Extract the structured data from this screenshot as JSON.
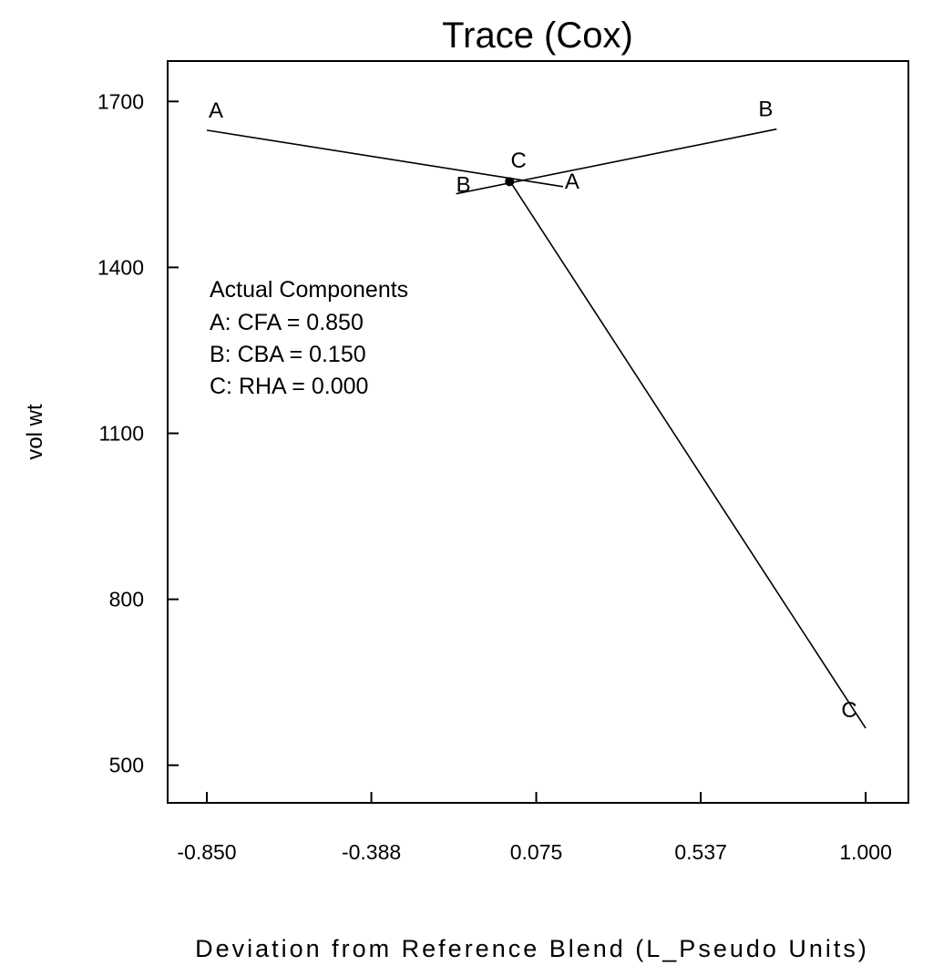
{
  "chart_data": {
    "type": "line",
    "title": "Trace (Cox)",
    "xlabel": "Deviation from Reference Blend (L_Pseudo Units)",
    "ylabel": "vol wt",
    "xlim": [
      -0.96,
      1.12
    ],
    "ylim": [
      432,
      1773
    ],
    "x_ticks": [
      {
        "value": -0.85,
        "label": "-0.850"
      },
      {
        "value": -0.388,
        "label": "-0.388"
      },
      {
        "value": 0.075,
        "label": "0.075"
      },
      {
        "value": 0.537,
        "label": "0.537"
      },
      {
        "value": 1.0,
        "label": "1.000"
      }
    ],
    "y_ticks": [
      {
        "value": 500,
        "label": "500"
      },
      {
        "value": 800,
        "label": "800"
      },
      {
        "value": 1100,
        "label": "1100"
      },
      {
        "value": 1400,
        "label": "1400"
      },
      {
        "value": 1700,
        "label": "1700"
      }
    ],
    "grid": false,
    "series": [
      {
        "name": "A",
        "start_label": "A",
        "end_label": "A",
        "x": [
          -0.85,
          0.15
        ],
        "y": [
          1648,
          1546
        ]
      },
      {
        "name": "B",
        "start_label": "B",
        "end_label": "B",
        "x": [
          -0.15,
          0.75
        ],
        "y": [
          1533,
          1650
        ]
      },
      {
        "name": "C",
        "start_label": "C",
        "end_label": "C",
        "x": [
          0.0,
          1.0
        ],
        "y": [
          1557,
          567
        ]
      }
    ],
    "reference_point": {
      "x": 0.0,
      "y": 1555
    },
    "annotation": {
      "title": "Actual Components",
      "lines": [
        "A: CFA = 0.850",
        "B: CBA = 0.150",
        "C: RHA = 0.000"
      ]
    }
  }
}
